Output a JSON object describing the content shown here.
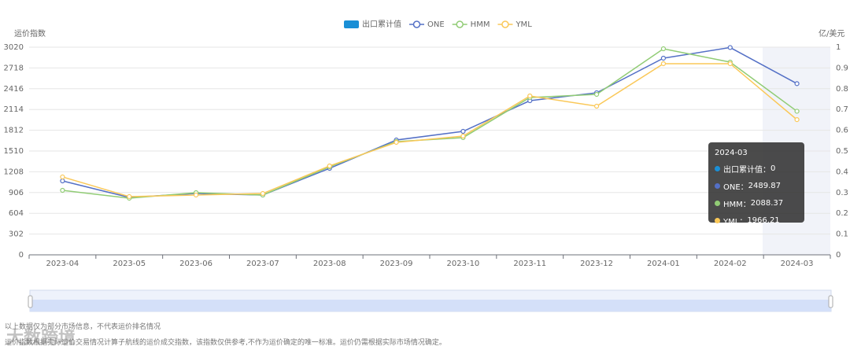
{
  "chart_data": {
    "type": "line",
    "y_label": "运价指数",
    "y2_label": "亿/美元",
    "categories": [
      "2023-04",
      "2023-05",
      "2023-06",
      "2023-07",
      "2023-08",
      "2023-09",
      "2023-10",
      "2023-11",
      "2023-12",
      "2024-01",
      "2024-02",
      "2024-03"
    ],
    "series": [
      {
        "name": "出口累计值",
        "type": "bar",
        "axis": "y2",
        "color": "#1a8fd6",
        "values": [
          0,
          0,
          0,
          0,
          0,
          0,
          0,
          0,
          0,
          0,
          0,
          0
        ]
      },
      {
        "name": "ONE",
        "color": "#5470c6",
        "values": [
          1075,
          835,
          892,
          870,
          1258,
          1670,
          1796,
          2242,
          2357,
          2860,
          3015,
          2489.87
        ]
      },
      {
        "name": "HMM",
        "color": "#91cc75",
        "values": [
          938,
          824,
          904,
          870,
          1281,
          1647,
          1705,
          2288,
          2334,
          2997,
          2803,
          2088.37
        ]
      },
      {
        "name": "YML",
        "color": "#fac858",
        "values": [
          1133,
          847,
          870,
          892,
          1293,
          1636,
          1727,
          2311,
          2162,
          2780,
          2780,
          1966.21
        ]
      }
    ],
    "ylim": [
      0,
      3020
    ],
    "yticks": [
      0,
      302,
      604,
      906,
      1208,
      1510,
      1812,
      2114,
      2416,
      2718,
      3020
    ],
    "y2lim": [
      0,
      1
    ],
    "y2ticks": [
      0,
      0.1,
      0.2,
      0.3,
      0.4,
      0.5,
      0.6,
      0.7,
      0.8,
      0.9,
      1
    ],
    "grid": true,
    "legend": "top",
    "tooltip_index": 11,
    "notes": [
      "以上数据仅为部分市场信息，不代表运价排名情况",
      "运价指数根据实际运价交易情况计算子航线的运价成交指数，该指数仅供参考,不作为运价确定的唯一标准。运价仍需根据实际市场情况确定。"
    ],
    "watermark": "大数跨境"
  }
}
